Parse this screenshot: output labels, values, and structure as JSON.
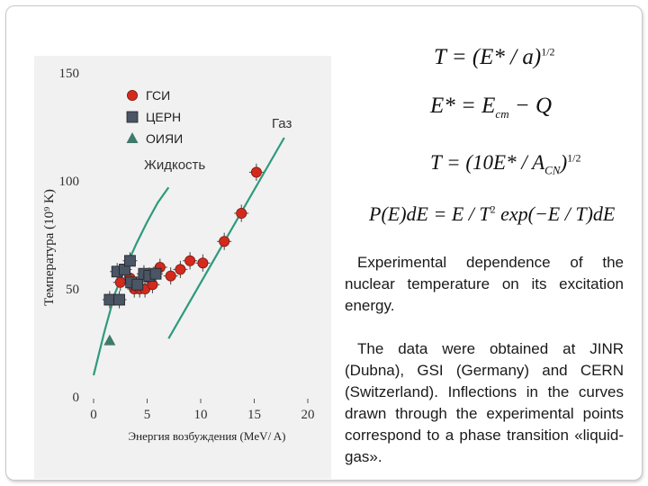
{
  "formulas": {
    "f1": "T = (E* / a)",
    "f1_exp": "1/2",
    "f2_lhs": "E* = E",
    "f2_sub": "cm",
    "f2_rhs": " − Q",
    "f3_a": "T = (10E* / A",
    "f3_sub": "CN",
    "f3_b": ")",
    "f3_exp": "1/2",
    "f4_a": "P(E)dE = E / T",
    "f4_exp": "2",
    "f4_b": " exp(−E / T)dE"
  },
  "text": {
    "paragraph1": "Experimental dependence of the nuclear temperature on its excitation energy.",
    "paragraph2": "The data were obtained at JINR (Dubna), GSI (Germany) and CERN (Switzerland). Inflections in the curves drawn through the experimental points correspond to a phase transition «liquid-gas»."
  },
  "chart_data": {
    "type": "scatter",
    "xlabel": "Энергия возбуждения (MeV/ A)",
    "ylabel": "Температура (10⁹ K)",
    "xlim": [
      0,
      20
    ],
    "ylim": [
      0,
      150
    ],
    "x_ticks": [
      "0",
      "5",
      "10",
      "15",
      "20"
    ],
    "y_ticks": [
      "0",
      "50",
      "100",
      "150"
    ],
    "legend_position": "top-left",
    "series": [
      {
        "name": "ГСИ",
        "marker": "circle",
        "color": "#d42a1e",
        "points": [
          [
            2.5,
            53
          ],
          [
            3.4,
            55
          ],
          [
            3.8,
            50
          ],
          [
            4.3,
            50
          ],
          [
            4.8,
            50
          ],
          [
            5.2,
            55
          ],
          [
            5.5,
            52
          ],
          [
            6.2,
            60
          ],
          [
            7.2,
            56
          ],
          [
            8.1,
            59
          ],
          [
            9.0,
            63
          ],
          [
            10.2,
            62
          ],
          [
            12.2,
            72
          ],
          [
            13.8,
            85
          ],
          [
            15.2,
            104
          ]
        ]
      },
      {
        "name": "ЦЕРН",
        "marker": "square",
        "color": "#4a5566",
        "points": [
          [
            1.5,
            45
          ],
          [
            2.2,
            58
          ],
          [
            2.4,
            45
          ],
          [
            2.9,
            59
          ],
          [
            3.4,
            63
          ],
          [
            3.5,
            53
          ],
          [
            4.1,
            52
          ],
          [
            4.7,
            57
          ],
          [
            5.2,
            56
          ],
          [
            5.8,
            57
          ]
        ]
      },
      {
        "name": "ОИЯИ",
        "marker": "triangle",
        "color": "#3f7a6a",
        "points": [
          [
            1.5,
            26
          ]
        ]
      }
    ],
    "curves": [
      {
        "name": "Жидкость",
        "color": "#2e9a7d",
        "points": [
          [
            0,
            10
          ],
          [
            1,
            30
          ],
          [
            2,
            48
          ],
          [
            3,
            60
          ],
          [
            4,
            71
          ],
          [
            5,
            81
          ],
          [
            6,
            90
          ],
          [
            7,
            97
          ]
        ]
      },
      {
        "name": "Газ",
        "color": "#2e9a7d",
        "points": [
          [
            7,
            27
          ],
          [
            17.8,
            120
          ]
        ]
      }
    ],
    "error_bar_half": 4
  }
}
